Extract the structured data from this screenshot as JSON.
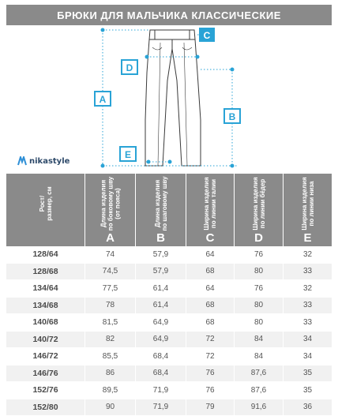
{
  "title": "БРЮКИ ДЛЯ МАЛЬЧИКА КЛАССИЧЕСКИЕ",
  "logo": {
    "text": "nikastyle",
    "icon": "nikastyle-logo-icon"
  },
  "markers": {
    "a": "A",
    "b": "B",
    "c": "C",
    "d": "D",
    "e": "E"
  },
  "accent_color": "#29a3d6",
  "header_bg": "#8a8a8a",
  "table": {
    "columns": [
      {
        "label": "Рост/\nразмер, см",
        "letter": ""
      },
      {
        "label": "Длина изделия\nпо боковому шву\n(от пояса)",
        "letter": "A"
      },
      {
        "label": "Длина изделия\nпо шаговому шву",
        "letter": "B"
      },
      {
        "label": "Ширина изделия\nпо линии талии",
        "letter": "C"
      },
      {
        "label": "Ширина изделия\nпо линии бёдер",
        "letter": "D"
      },
      {
        "label": "Ширина изделия\nпо линии низа",
        "letter": "E"
      }
    ],
    "rows": [
      [
        "128/64",
        "74",
        "57,9",
        "64",
        "76",
        "32"
      ],
      [
        "128/68",
        "74,5",
        "57,9",
        "68",
        "80",
        "33"
      ],
      [
        "134/64",
        "77,5",
        "61,4",
        "64",
        "76",
        "32"
      ],
      [
        "134/68",
        "78",
        "61,4",
        "68",
        "80",
        "33"
      ],
      [
        "140/68",
        "81,5",
        "64,9",
        "68",
        "80",
        "33"
      ],
      [
        "140/72",
        "82",
        "64,9",
        "72",
        "84",
        "34"
      ],
      [
        "146/72",
        "85,5",
        "68,4",
        "72",
        "84",
        "34"
      ],
      [
        "146/76",
        "86",
        "68,4",
        "76",
        "87,6",
        "35"
      ],
      [
        "152/76",
        "89,5",
        "71,9",
        "76",
        "87,6",
        "35"
      ],
      [
        "152/80",
        "90",
        "71,9",
        "79",
        "91,6",
        "36"
      ]
    ]
  }
}
